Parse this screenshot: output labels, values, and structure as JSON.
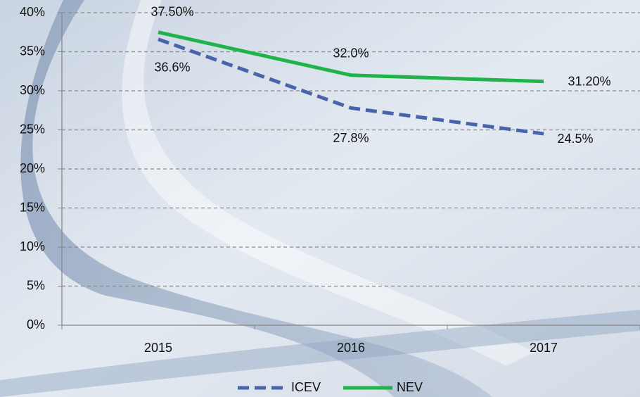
{
  "chart_data": {
    "type": "line",
    "categories": [
      "2015",
      "2016",
      "2017"
    ],
    "series": [
      {
        "name": "ICEV",
        "color": "#4a64ac",
        "dash": true,
        "values": [
          36.6,
          27.8,
          24.5
        ],
        "value_labels": [
          "36.6%",
          "27.8%",
          "24.5%"
        ]
      },
      {
        "name": "NEV",
        "color": "#1fb34a",
        "dash": false,
        "values": [
          37.5,
          32.0,
          31.2
        ],
        "value_labels": [
          "37.50%",
          "32.0%",
          "31.20%"
        ]
      }
    ],
    "ylim": [
      0,
      40
    ],
    "yticks": [
      {
        "value": 0,
        "label": "0%"
      },
      {
        "value": 5,
        "label": "5%"
      },
      {
        "value": 10,
        "label": "10%"
      },
      {
        "value": 15,
        "label": "15%"
      },
      {
        "value": 20,
        "label": "20%"
      },
      {
        "value": 25,
        "label": "25%"
      },
      {
        "value": 30,
        "label": "30%"
      },
      {
        "value": 35,
        "label": "35%"
      },
      {
        "value": 40,
        "label": "40%"
      }
    ],
    "grid": true,
    "legend": "bottom"
  }
}
